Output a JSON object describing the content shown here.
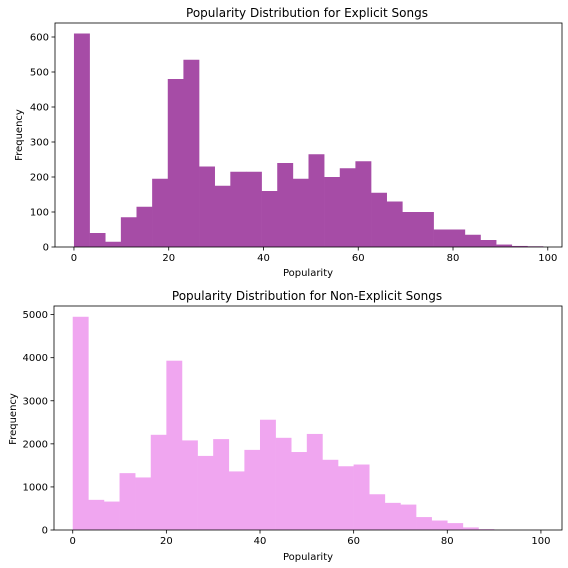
{
  "chart_data": [
    {
      "type": "bar",
      "title": "Popularity Distribution for Explicit Songs",
      "xlabel": "Popularity",
      "ylabel": "Frequency",
      "color": "#a64ca6",
      "xlim": [
        -4,
        103
      ],
      "ylim": [
        0,
        640
      ],
      "xticks": [
        0,
        20,
        40,
        60,
        80,
        100
      ],
      "yticks": [
        0,
        100,
        200,
        300,
        400,
        500,
        600
      ],
      "bin_start": 0,
      "bin_width": 3.3,
      "values": [
        610,
        40,
        15,
        85,
        115,
        195,
        480,
        535,
        230,
        175,
        215,
        215,
        160,
        240,
        195,
        265,
        200,
        225,
        245,
        155,
        130,
        100,
        100,
        50,
        50,
        35,
        20,
        7,
        3,
        2
      ]
    },
    {
      "type": "bar",
      "title": "Popularity Distribution for Non-Explicit Songs",
      "xlabel": "Popularity",
      "ylabel": "Frequency",
      "color": "#f0a6f0",
      "xlim": [
        -4,
        104.5
      ],
      "ylim": [
        0,
        5200
      ],
      "xticks": [
        0,
        20,
        40,
        60,
        80,
        100
      ],
      "yticks": [
        0,
        1000,
        2000,
        3000,
        4000,
        5000
      ],
      "bin_start": 0,
      "bin_width": 3.333,
      "values": [
        4950,
        700,
        660,
        1320,
        1220,
        2210,
        3930,
        2080,
        1720,
        2110,
        1360,
        1860,
        2560,
        2140,
        1810,
        2230,
        1630,
        1480,
        1520,
        830,
        630,
        590,
        300,
        220,
        160,
        60,
        20,
        5,
        2,
        1
      ]
    }
  ]
}
